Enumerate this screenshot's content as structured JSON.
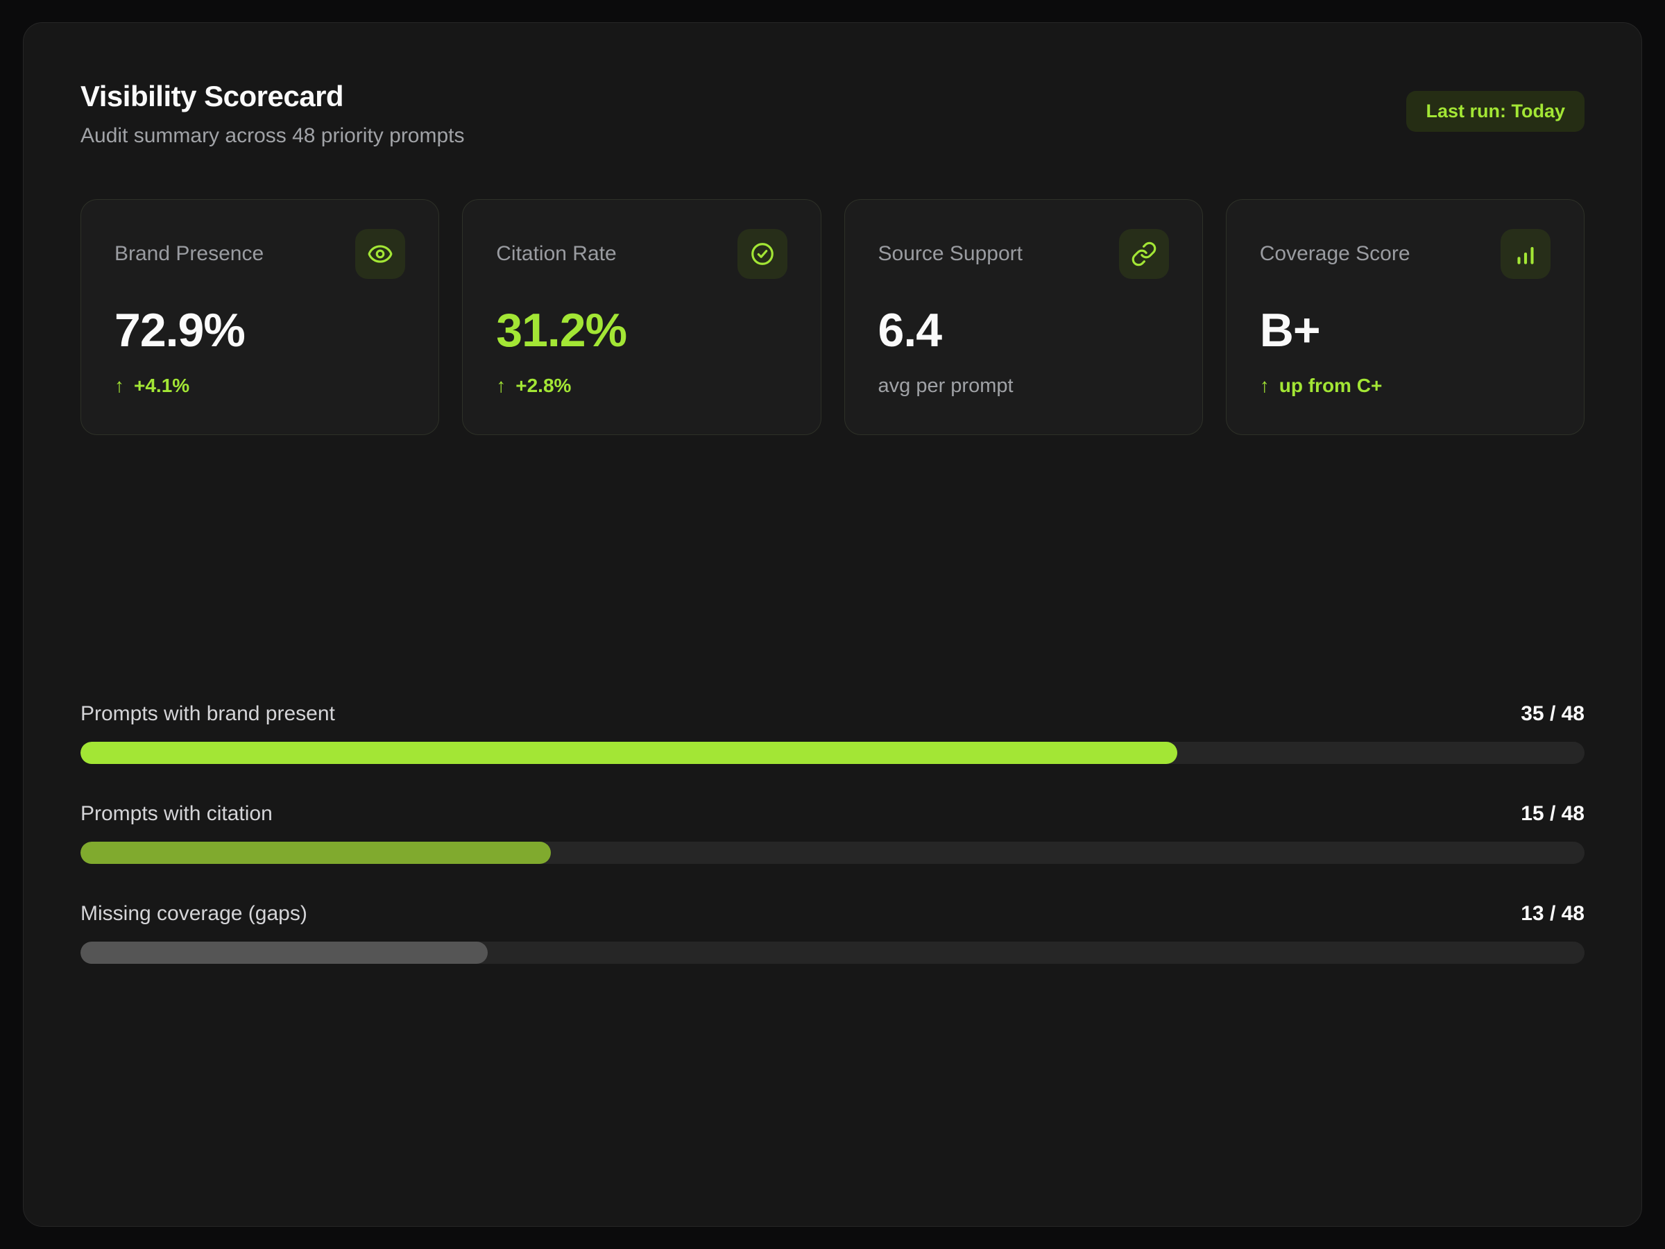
{
  "header": {
    "title": "Visibility Scorecard",
    "subtitle": "Audit summary across 48 priority prompts",
    "last_run": "Last run: Today"
  },
  "colors": {
    "accent": "#a3e635",
    "accent_muted": "#80aa2e",
    "neutral_fill": "#555555",
    "track": "#262626"
  },
  "cards": [
    {
      "label": "Brand Presence",
      "icon": "eye-icon",
      "value": "72.9%",
      "value_color": "#fafafa",
      "arrow": "↑",
      "delta": "+4.1%",
      "delta_color": "#a3e635"
    },
    {
      "label": "Citation Rate",
      "icon": "check-circle-icon",
      "value": "31.2%",
      "value_color": "#a3e635",
      "arrow": "↑",
      "delta": "+2.8%",
      "delta_color": "#a3e635"
    },
    {
      "label": "Source Support",
      "icon": "link-icon",
      "value": "6.4",
      "value_color": "#fafafa",
      "arrow": "",
      "delta": "avg per prompt",
      "delta_color": "#a0a2a6"
    },
    {
      "label": "Coverage Score",
      "icon": "bar-chart-icon",
      "value": "B+",
      "value_color": "#fafafa",
      "arrow": "↑",
      "delta": "up from C+",
      "delta_color": "#a3e635"
    }
  ],
  "progress": [
    {
      "label": "Prompts with brand present",
      "count": "35 / 48",
      "value": 35,
      "total": 48,
      "fill_color": "#a3e635"
    },
    {
      "label": "Prompts with citation",
      "count": "15 / 48",
      "value": 15,
      "total": 48,
      "fill_color": "#80aa2e"
    },
    {
      "label": "Missing coverage (gaps)",
      "count": "13 / 48",
      "value": 13,
      "total": 48,
      "fill_color": "#555555"
    }
  ]
}
